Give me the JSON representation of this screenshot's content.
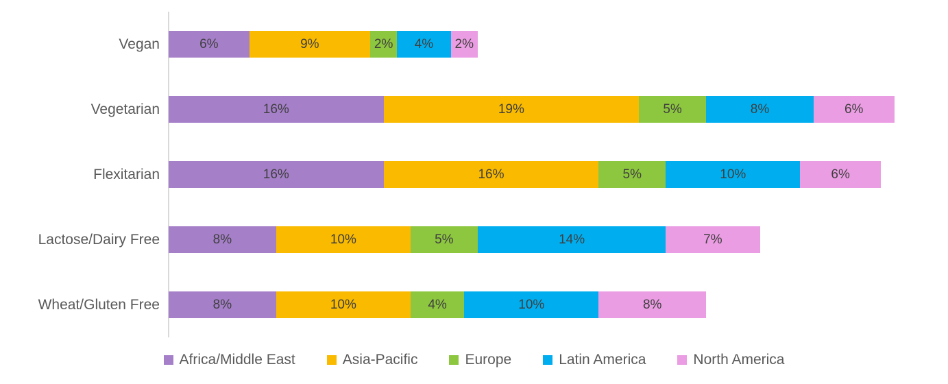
{
  "chart_data": {
    "type": "bar",
    "orientation": "horizontal",
    "stacked": true,
    "title": "",
    "xlabel": "",
    "ylabel": "",
    "grid": false,
    "legend_position": "bottom",
    "value_format": "percent",
    "xlim": [
      0,
      58
    ],
    "categories": [
      "Vegan",
      "Vegetarian",
      "Flexitarian",
      "Lactose/Dairy Free",
      "Wheat/Gluten Free"
    ],
    "series": [
      {
        "name": "Africa/Middle East",
        "color": "#A57FC8",
        "values": [
          6,
          16,
          16,
          8,
          8
        ]
      },
      {
        "name": "Asia-Pacific",
        "color": "#F9BA00",
        "values": [
          9,
          19,
          16,
          10,
          10
        ]
      },
      {
        "name": "Europe",
        "color": "#8DC63F",
        "values": [
          2,
          5,
          5,
          5,
          4
        ]
      },
      {
        "name": "Latin America",
        "color": "#00AEEF",
        "values": [
          4,
          8,
          10,
          14,
          10
        ]
      },
      {
        "name": "North America",
        "color": "#EB9DE3",
        "values": [
          2,
          6,
          6,
          7,
          8
        ]
      }
    ],
    "totals": [
      23,
      54,
      53,
      44,
      40
    ],
    "data_labels": [
      [
        "6%",
        "9%",
        "2%",
        "4%",
        "2%"
      ],
      [
        "16%",
        "19%",
        "5%",
        "8%",
        "6%"
      ],
      [
        "16%",
        "16%",
        "5%",
        "10%",
        "6%"
      ],
      [
        "8%",
        "10%",
        "5%",
        "14%",
        "7%"
      ],
      [
        "8%",
        "10%",
        "4%",
        "10%",
        "8%"
      ]
    ]
  },
  "style": {
    "axis_line_color": "#d9d9d9",
    "category_label_color": "#595959",
    "data_label_color": "#3f3f3f",
    "legend_text_color": "#595959",
    "background": "#ffffff"
  }
}
